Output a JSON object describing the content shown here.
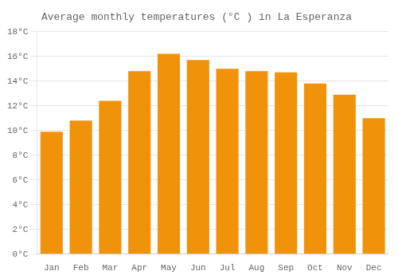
{
  "chart_data": {
    "type": "bar",
    "title": "Average monthly temperatures (°C ) in La Esperanza",
    "categories": [
      "Jan",
      "Feb",
      "Mar",
      "Apr",
      "May",
      "Jun",
      "Jul",
      "Aug",
      "Sep",
      "Oct",
      "Nov",
      "Dec"
    ],
    "values": [
      9.9,
      10.8,
      12.4,
      14.8,
      16.2,
      15.7,
      15.0,
      14.8,
      14.7,
      13.8,
      12.9,
      11.0
    ],
    "color": "#F0920A",
    "ylim": [
      0,
      18
    ],
    "yticks": [
      {
        "value": 0,
        "label": "0°C"
      },
      {
        "value": 2,
        "label": "2°C"
      },
      {
        "value": 4,
        "label": "4°C"
      },
      {
        "value": 6,
        "label": "6°C"
      },
      {
        "value": 8,
        "label": "8°C"
      },
      {
        "value": 10,
        "label": "10°C"
      },
      {
        "value": 12,
        "label": "12°C"
      },
      {
        "value": 14,
        "label": "14°C"
      },
      {
        "value": 16,
        "label": "16°C"
      },
      {
        "value": 18,
        "label": "18°C"
      }
    ],
    "grid": true
  }
}
